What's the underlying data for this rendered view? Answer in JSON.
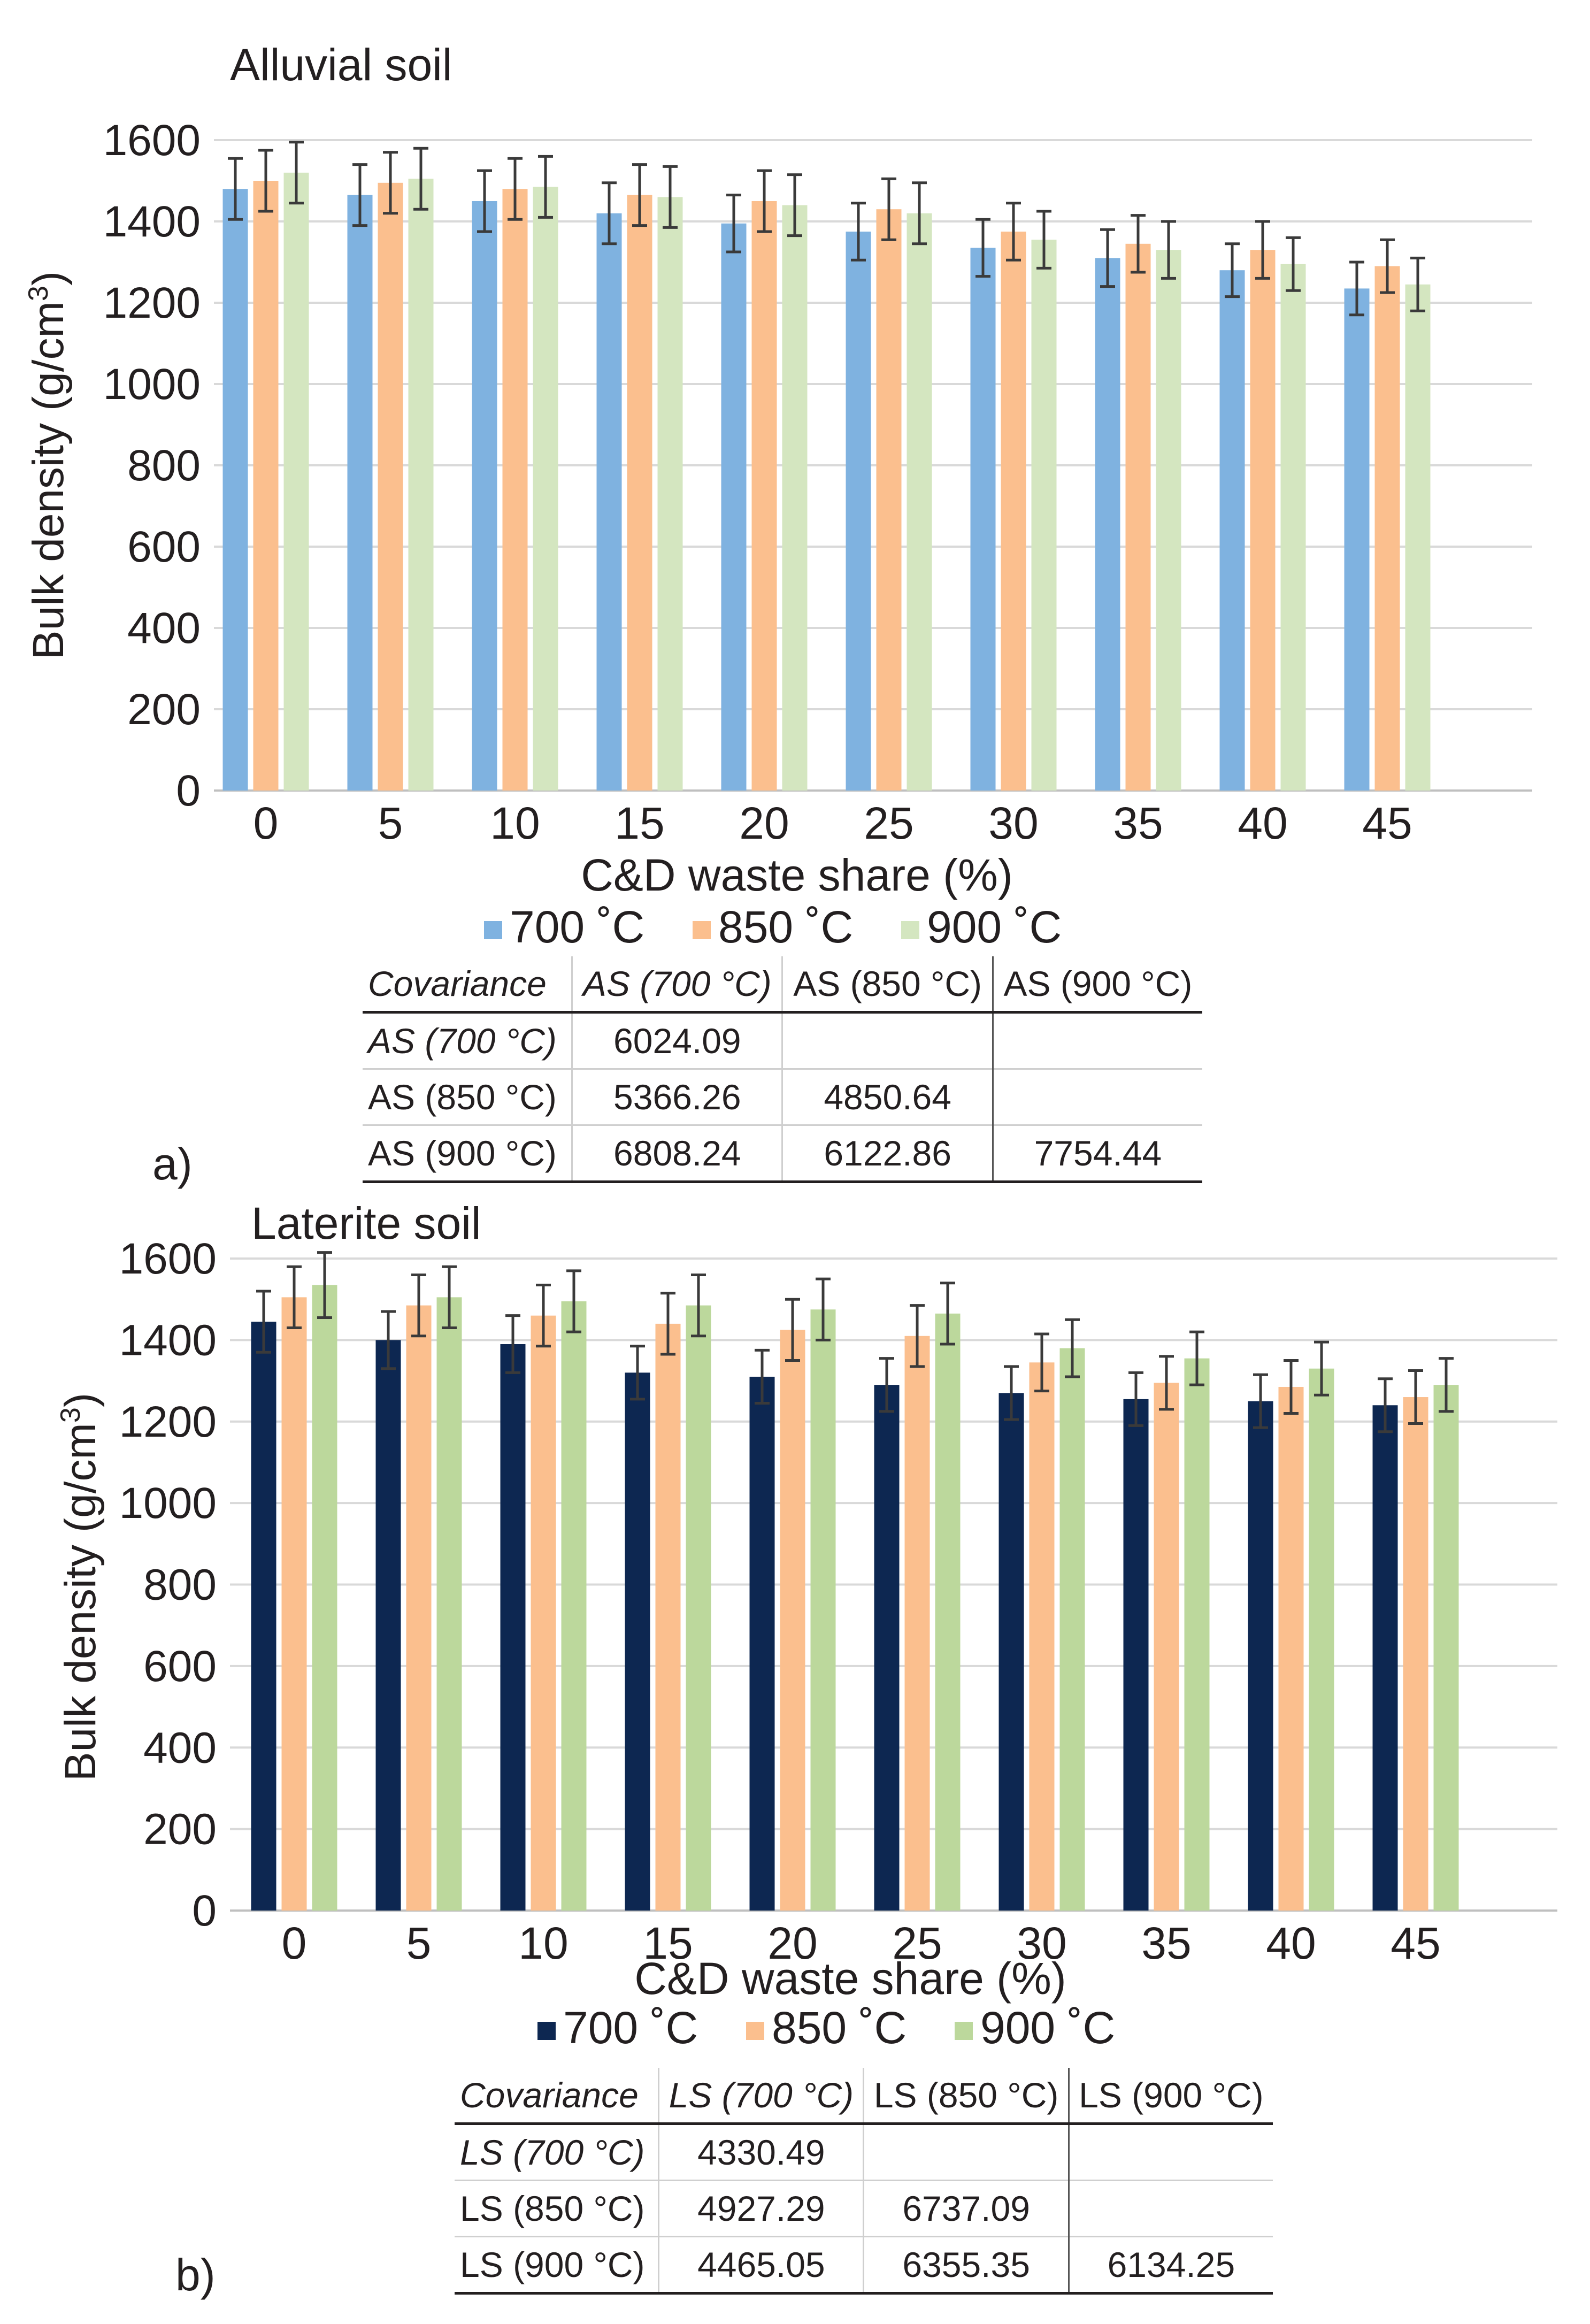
{
  "charts": [
    {
      "id": "alluvial",
      "panel_label": "a)",
      "title": "Alluvial soil",
      "type": "bar",
      "ylabel_main": "Bulk density (g/cm",
      "ylabel_sup": "3",
      "ylabel_close": ")",
      "xlabel": "C&D waste share (%)",
      "ylim": [
        0,
        1600
      ],
      "yticks": [
        0,
        200,
        400,
        600,
        800,
        1000,
        1200,
        1400,
        1600
      ],
      "categories": [
        "0",
        "5",
        "10",
        "15",
        "20",
        "25",
        "30",
        "35",
        "40",
        "45"
      ],
      "series": [
        {
          "name": "700 ˚C",
          "color": "#7fb2e0",
          "values": [
            1480,
            1465,
            1450,
            1420,
            1395,
            1375,
            1335,
            1310,
            1280,
            1235
          ],
          "errors": [
            75,
            75,
            75,
            75,
            70,
            70,
            70,
            70,
            65,
            65
          ]
        },
        {
          "name": "850 ˚C",
          "color": "#fbbf8e",
          "values": [
            1500,
            1495,
            1480,
            1465,
            1450,
            1430,
            1375,
            1345,
            1330,
            1290
          ],
          "errors": [
            75,
            75,
            75,
            75,
            75,
            75,
            70,
            70,
            70,
            65
          ]
        },
        {
          "name": "900 ˚C",
          "color": "#d4e6c0",
          "values": [
            1520,
            1505,
            1485,
            1460,
            1440,
            1420,
            1355,
            1330,
            1295,
            1245
          ],
          "errors": [
            75,
            75,
            75,
            75,
            75,
            75,
            70,
            70,
            65,
            65
          ]
        }
      ],
      "legend": "bottom-center",
      "grid": true
    },
    {
      "id": "laterite",
      "panel_label": "b)",
      "title": "Laterite soil",
      "type": "bar",
      "ylabel_main": "Bulk density (g/cm",
      "ylabel_sup": "3",
      "ylabel_close": ")",
      "xlabel": "C&D waste share (%)",
      "ylim": [
        0,
        1600
      ],
      "yticks": [
        0,
        200,
        400,
        600,
        800,
        1000,
        1200,
        1400,
        1600
      ],
      "categories": [
        "0",
        "5",
        "10",
        "15",
        "20",
        "25",
        "30",
        "35",
        "40",
        "45"
      ],
      "series": [
        {
          "name": "700 ˚C",
          "color": "#0d2751",
          "values": [
            1445,
            1400,
            1390,
            1320,
            1310,
            1290,
            1270,
            1255,
            1250,
            1240
          ],
          "errors": [
            75,
            70,
            70,
            65,
            65,
            65,
            65,
            65,
            65,
            65
          ]
        },
        {
          "name": "850 ˚C",
          "color": "#fbbf8e",
          "values": [
            1505,
            1485,
            1460,
            1440,
            1425,
            1410,
            1345,
            1295,
            1285,
            1260
          ],
          "errors": [
            75,
            75,
            75,
            75,
            75,
            75,
            70,
            65,
            65,
            65
          ]
        },
        {
          "name": "900 ˚C",
          "color": "#bcd89c",
          "values": [
            1535,
            1505,
            1495,
            1485,
            1475,
            1465,
            1380,
            1355,
            1330,
            1290
          ],
          "errors": [
            80,
            75,
            75,
            75,
            75,
            75,
            70,
            65,
            65,
            65
          ]
        }
      ],
      "legend": "bottom-center",
      "grid": true
    }
  ],
  "tables": [
    {
      "header": [
        "Covariance",
        "AS (700 °C)",
        "AS (850 °C)",
        "AS (900 °C)"
      ],
      "rows": [
        [
          "AS (700 °C)",
          "6024.09",
          "",
          ""
        ],
        [
          "AS (850 °C)",
          "5366.26",
          "4850.64",
          ""
        ],
        [
          "AS (900 °C)",
          "6808.24",
          "6122.86",
          "7754.44"
        ]
      ]
    },
    {
      "header": [
        "Covariance",
        "LS (700 °C)",
        "LS (850 °C)",
        "LS (900 °C)"
      ],
      "rows": [
        [
          "LS (700 °C)",
          "4330.49",
          "",
          ""
        ],
        [
          "LS (850 °C)",
          "4927.29",
          "6737.09",
          ""
        ],
        [
          "LS (900 °C)",
          "4465.05",
          "6355.35",
          "6134.25"
        ]
      ]
    }
  ]
}
